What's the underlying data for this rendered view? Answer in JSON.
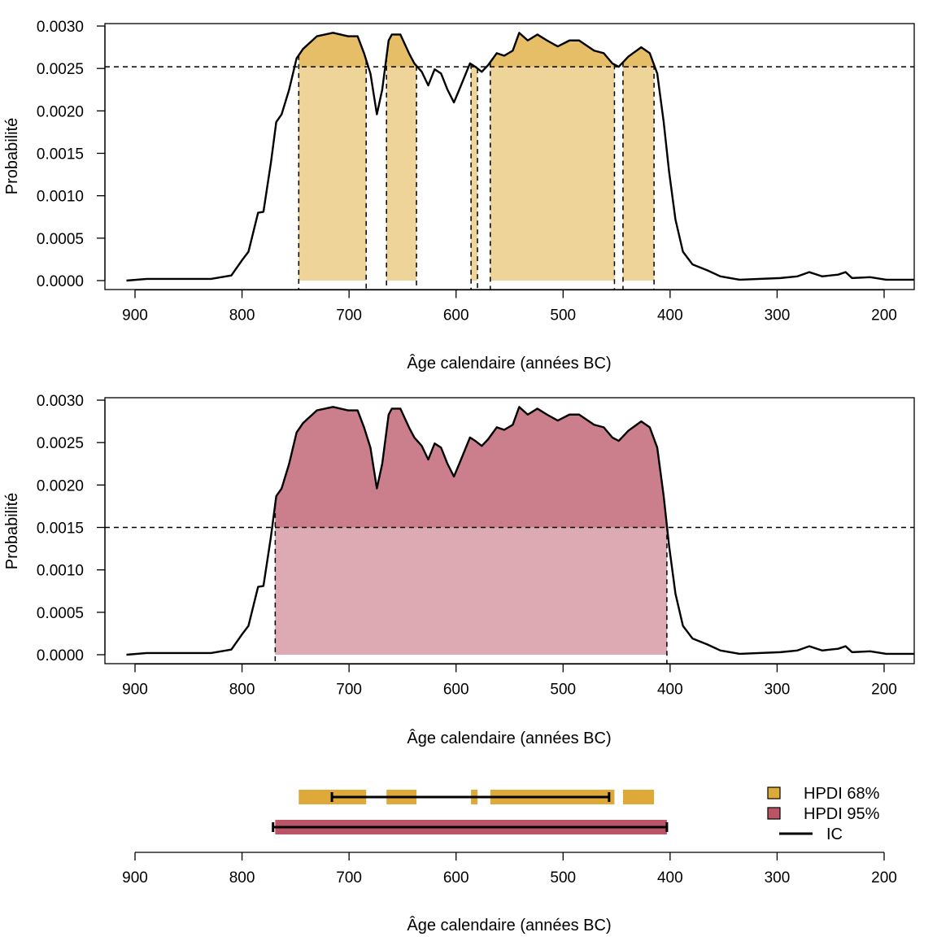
{
  "chart_data": [
    {
      "type": "area",
      "xlabel": "Âge calendaire (années BC)",
      "ylabel": "Probabilité",
      "xlim": [
        928,
        172
      ],
      "ylim": [
        0,
        0.003
      ],
      "x_ticks": [
        900,
        800,
        700,
        600,
        500,
        400,
        300,
        200
      ],
      "y_ticks": [
        "0.0000",
        "0.0005",
        "0.0010",
        "0.0015",
        "0.0020",
        "0.0025",
        "0.0030"
      ],
      "threshold": 0.00252,
      "hpd_level": "68%",
      "hpd_intervals": [
        [
          747,
          684
        ],
        [
          665,
          637
        ],
        [
          586,
          580
        ],
        [
          568,
          452
        ],
        [
          444,
          415
        ]
      ],
      "colors": {
        "above": "#E5BE67",
        "below": "#EED498"
      }
    },
    {
      "type": "area",
      "xlabel": "Âge calendaire (années BC)",
      "ylabel": "Probabilité",
      "xlim": [
        928,
        172
      ],
      "ylim": [
        0,
        0.003
      ],
      "x_ticks": [
        900,
        800,
        700,
        600,
        500,
        400,
        300,
        200
      ],
      "y_ticks": [
        "0.0000",
        "0.0005",
        "0.0010",
        "0.0015",
        "0.0020",
        "0.0025",
        "0.0030"
      ],
      "threshold": 0.0015,
      "hpd_level": "95%",
      "hpd_intervals": [
        [
          769,
          403
        ]
      ],
      "colors": {
        "above": "#CB7F8C",
        "below": "#DDA9B3"
      }
    },
    {
      "type": "interval",
      "xlabel": "Âge calendaire (années BC)",
      "x_ticks": [
        900,
        800,
        700,
        600,
        500,
        400,
        300,
        200
      ],
      "hpdi_68": [
        [
          747,
          684
        ],
        [
          665,
          637
        ],
        [
          586,
          580
        ],
        [
          568,
          452
        ],
        [
          444,
          415
        ]
      ],
      "hpdi_95": [
        [
          769,
          403
        ]
      ],
      "ic_68": [
        716,
        457
      ],
      "ic_95": [
        771,
        403
      ],
      "legend": [
        {
          "label": "HPDI 68%",
          "color": "#DDAA3A"
        },
        {
          "label": "HPDI 95%",
          "color": "#BB5566"
        },
        {
          "label": "IC",
          "color": "#000000"
        }
      ],
      "legend_position": "right"
    }
  ],
  "density": {
    "years": [
      908,
      889,
      829,
      810,
      800,
      794,
      785,
      780,
      773,
      768,
      763,
      756,
      749,
      743,
      730,
      715,
      701,
      692,
      686,
      680,
      674,
      669,
      663,
      660,
      652,
      644,
      639,
      632,
      626,
      620,
      614,
      608,
      602,
      597,
      587,
      582,
      576,
      570,
      562,
      555,
      547,
      541,
      533,
      524,
      515,
      505,
      494,
      485,
      471,
      462,
      454,
      448,
      439,
      427,
      419,
      412,
      406,
      401,
      395,
      388,
      379,
      365,
      353,
      335,
      297,
      281,
      270,
      258,
      243,
      236,
      230,
      213,
      198,
      172
    ],
    "values": [
      0.0,
      2e-05,
      2e-05,
      6e-05,
      0.00024,
      0.00034,
      0.0008,
      0.00081,
      0.00139,
      0.00187,
      0.00196,
      0.00225,
      0.00262,
      0.00273,
      0.00288,
      0.00292,
      0.00288,
      0.00288,
      0.00268,
      0.00244,
      0.00196,
      0.00225,
      0.00283,
      0.0029,
      0.0029,
      0.00268,
      0.00256,
      0.00246,
      0.0023,
      0.00249,
      0.00244,
      0.00225,
      0.0021,
      0.00225,
      0.00256,
      0.00252,
      0.00246,
      0.00254,
      0.00268,
      0.00265,
      0.00271,
      0.00292,
      0.00283,
      0.0029,
      0.00283,
      0.00276,
      0.00283,
      0.00283,
      0.00271,
      0.00268,
      0.00256,
      0.00252,
      0.00264,
      0.00275,
      0.00268,
      0.00244,
      0.00187,
      0.00129,
      0.00072,
      0.00034,
      0.00019,
      0.00012,
      5e-05,
      1e-05,
      3e-05,
      5e-05,
      0.0001,
      5e-05,
      7e-05,
      0.0001,
      3e-05,
      4e-05,
      1e-05,
      1e-05
    ]
  }
}
